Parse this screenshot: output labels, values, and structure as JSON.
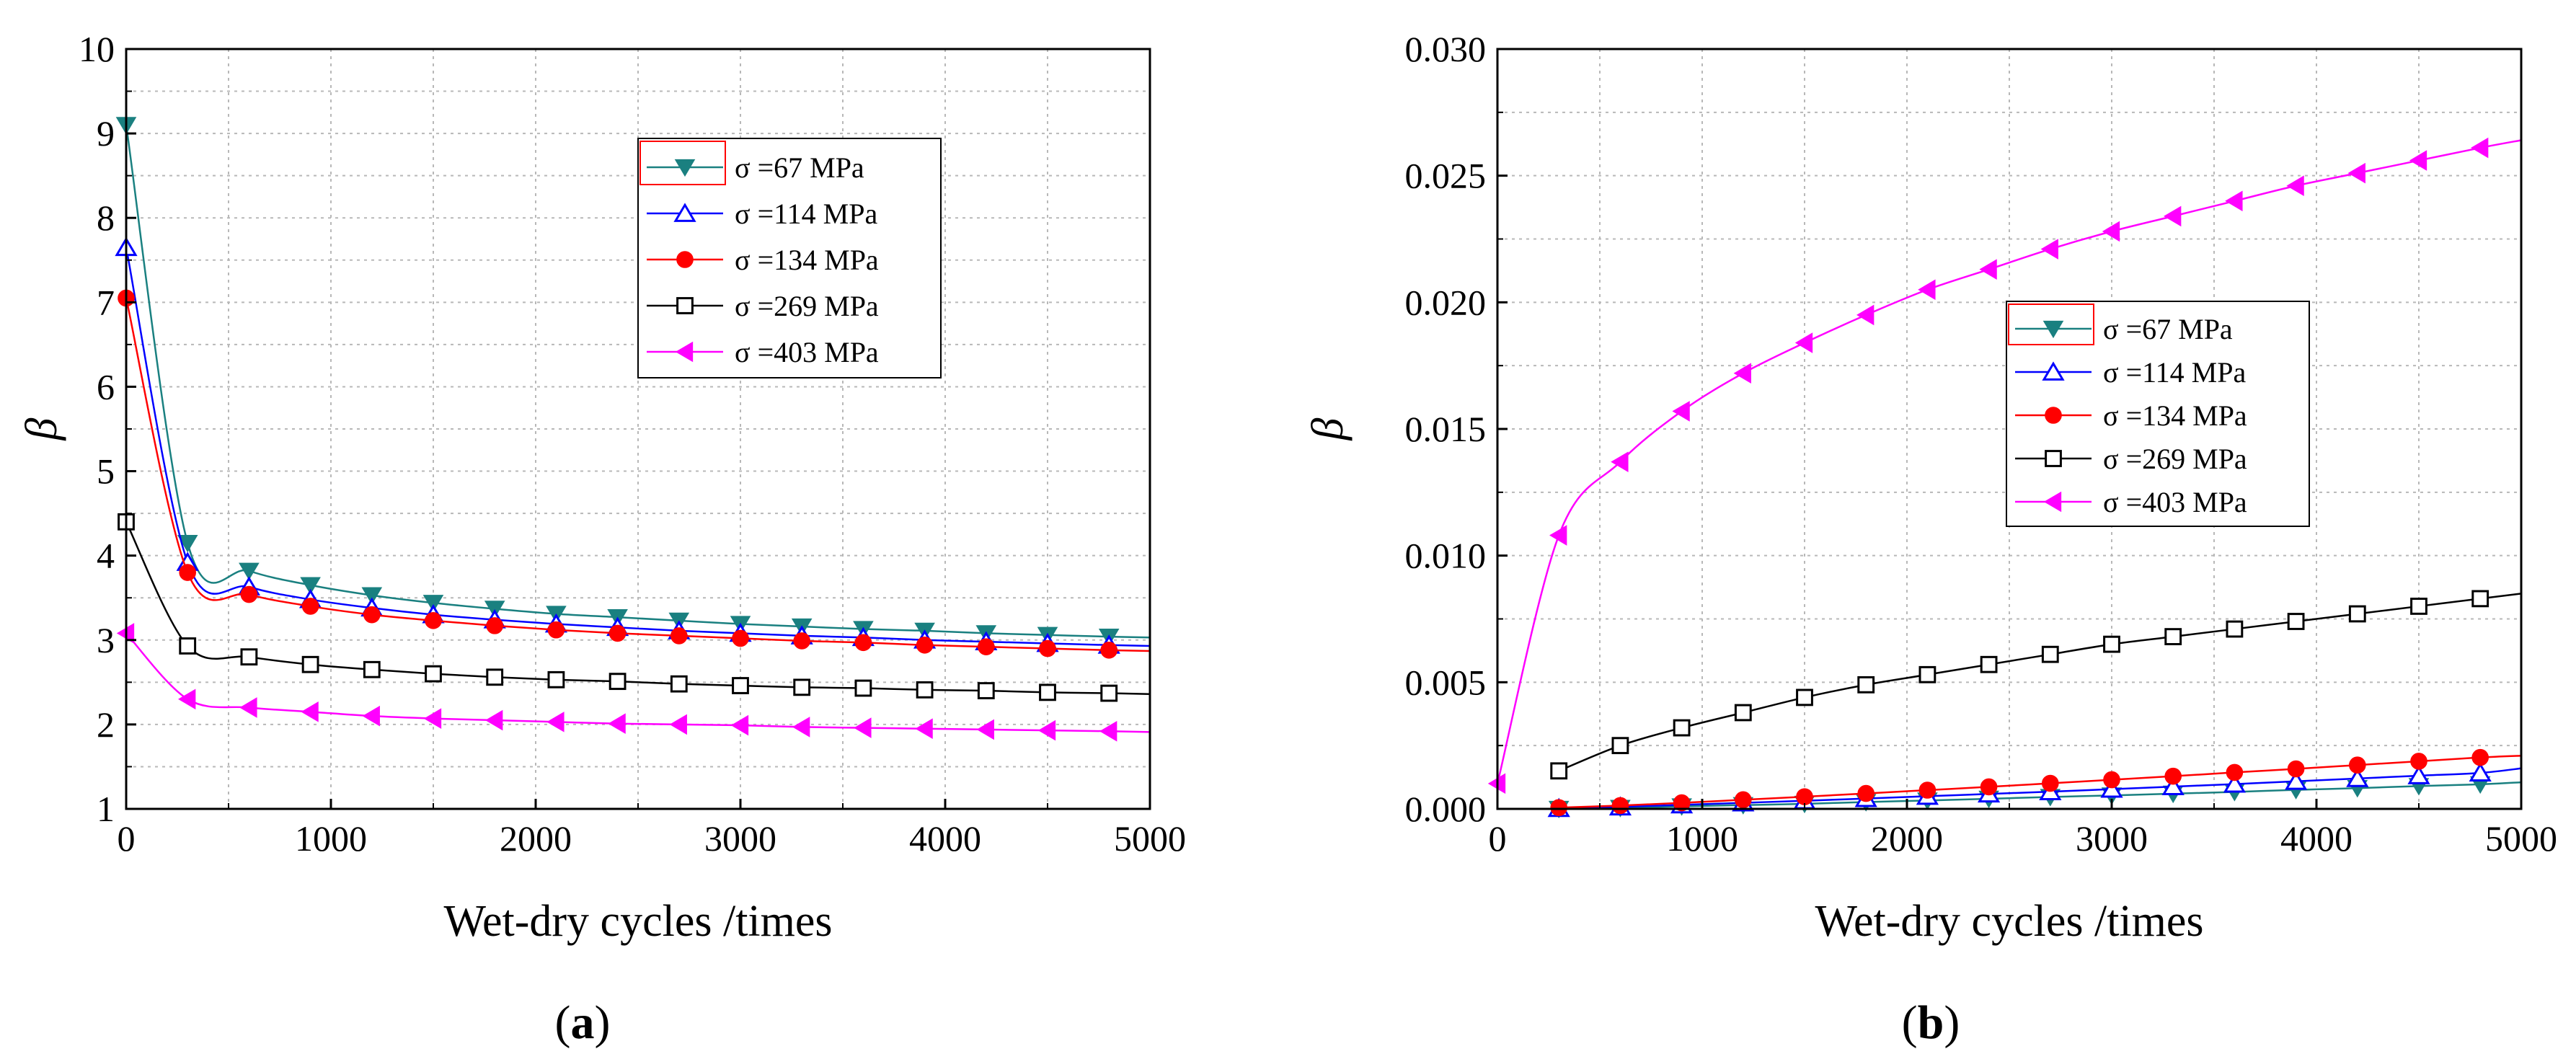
{
  "chart_data": [
    {
      "type": "line",
      "panel_label": "a",
      "xlabel": "Wet-dry cycles /times",
      "ylabel": "β",
      "xlim": [
        0,
        5000
      ],
      "ylim": [
        1,
        10
      ],
      "xticks": [
        0,
        1000,
        2000,
        3000,
        4000,
        5000
      ],
      "yticks": [
        1,
        2,
        3,
        4,
        5,
        6,
        7,
        8,
        9,
        10
      ],
      "legend_position": "top-right",
      "grid": true,
      "series": [
        {
          "name": "σ =67 MPa",
          "color": "#1a8080",
          "marker": "triangle-down-filled",
          "x": [
            0,
            300,
            600,
            900,
            1200,
            1500,
            1800,
            2100,
            2400,
            2700,
            3000,
            3300,
            3600,
            3900,
            4200,
            4500,
            4800
          ],
          "y": [
            9.1,
            4.15,
            3.82,
            3.65,
            3.53,
            3.44,
            3.37,
            3.31,
            3.27,
            3.23,
            3.19,
            3.16,
            3.13,
            3.11,
            3.08,
            3.06,
            3.04
          ],
          "curve_end": 3.03
        },
        {
          "name": "σ =114 MPa",
          "color": "#0000ff",
          "marker": "triangle-up-open",
          "x": [
            0,
            300,
            600,
            900,
            1200,
            1500,
            1800,
            2100,
            2400,
            2700,
            3000,
            3300,
            3600,
            3900,
            4200,
            4500,
            4800
          ],
          "y": [
            7.65,
            3.92,
            3.63,
            3.48,
            3.38,
            3.3,
            3.24,
            3.19,
            3.15,
            3.11,
            3.08,
            3.05,
            3.03,
            3.0,
            2.98,
            2.96,
            2.94
          ],
          "curve_end": 2.93
        },
        {
          "name": "σ =134 MPa",
          "color": "#ff0000",
          "marker": "circle-filled",
          "x": [
            0,
            300,
            600,
            900,
            1200,
            1500,
            1800,
            2100,
            2400,
            2700,
            3000,
            3300,
            3600,
            3900,
            4200,
            4500,
            4800
          ],
          "y": [
            7.05,
            3.8,
            3.54,
            3.4,
            3.3,
            3.23,
            3.17,
            3.12,
            3.08,
            3.05,
            3.02,
            2.99,
            2.97,
            2.94,
            2.92,
            2.9,
            2.88
          ],
          "curve_end": 2.87
        },
        {
          "name": "σ =269 MPa",
          "color": "#000000",
          "marker": "square-open",
          "x": [
            0,
            300,
            600,
            900,
            1200,
            1500,
            1800,
            2100,
            2400,
            2700,
            3000,
            3300,
            3600,
            3900,
            4200,
            4500,
            4800
          ],
          "y": [
            4.4,
            2.93,
            2.8,
            2.71,
            2.65,
            2.6,
            2.56,
            2.53,
            2.51,
            2.48,
            2.46,
            2.44,
            2.43,
            2.41,
            2.4,
            2.38,
            2.37
          ],
          "curve_end": 2.36
        },
        {
          "name": "σ =403 MPa",
          "color": "#ff00ff",
          "marker": "triangle-left-filled",
          "x": [
            0,
            300,
            600,
            900,
            1200,
            1500,
            1800,
            2100,
            2400,
            2700,
            3000,
            3300,
            3600,
            3900,
            4200,
            4500,
            4800
          ],
          "y": [
            3.08,
            2.3,
            2.2,
            2.15,
            2.1,
            2.07,
            2.05,
            2.03,
            2.01,
            2.0,
            1.99,
            1.97,
            1.96,
            1.95,
            1.94,
            1.93,
            1.92
          ],
          "curve_end": 1.91
        }
      ]
    },
    {
      "type": "line",
      "panel_label": "b",
      "xlabel": "Wet-dry cycles /times",
      "ylabel": "β",
      "xlim": [
        0,
        5000
      ],
      "ylim": [
        0,
        0.03
      ],
      "xticks": [
        0,
        1000,
        2000,
        3000,
        4000,
        5000
      ],
      "yticks": [
        0.0,
        0.005,
        0.01,
        0.015,
        0.02,
        0.025,
        0.03
      ],
      "ytick_labels": [
        "0.000",
        "0.005",
        "0.010",
        "0.015",
        "0.020",
        "0.025",
        "0.030"
      ],
      "legend_position": "center",
      "grid": true,
      "series": [
        {
          "name": "σ =67 MPa",
          "color": "#1a8080",
          "marker": "triangle-down-filled",
          "x": [
            300,
            600,
            900,
            1200,
            1500,
            1800,
            2100,
            2400,
            2700,
            3000,
            3300,
            3600,
            3900,
            4200,
            4500,
            4800
          ],
          "y": [
            0.0,
            4e-05,
            0.0001,
            0.00015,
            0.0002,
            0.00027,
            0.00033,
            0.0004,
            0.00047,
            0.00053,
            0.0006,
            0.00067,
            0.00075,
            0.00082,
            0.0009,
            0.00097
          ],
          "curve_end": 0.00105
        },
        {
          "name": "σ =114 MPa",
          "color": "#0000ff",
          "marker": "triangle-up-open",
          "x": [
            300,
            600,
            900,
            1200,
            1500,
            1800,
            2100,
            2400,
            2700,
            3000,
            3300,
            3600,
            3900,
            4200,
            4500,
            4800
          ],
          "y": [
            2e-05,
            8e-05,
            0.00016,
            0.00024,
            0.00032,
            0.00041,
            0.0005,
            0.00059,
            0.00068,
            0.00078,
            0.00088,
            0.00098,
            0.00109,
            0.0012,
            0.00131,
            0.00142
          ],
          "curve_end": 0.0016
        },
        {
          "name": "σ =134 MPa",
          "color": "#ff0000",
          "marker": "circle-filled",
          "x": [
            300,
            600,
            900,
            1200,
            1500,
            1800,
            2100,
            2400,
            2700,
            3000,
            3300,
            3600,
            3900,
            4200,
            4500,
            4800
          ],
          "y": [
            5e-05,
            0.00013,
            0.00024,
            0.00036,
            0.00048,
            0.00061,
            0.00074,
            0.00087,
            0.00101,
            0.00115,
            0.00129,
            0.00144,
            0.00158,
            0.00173,
            0.00188,
            0.00203
          ],
          "curve_end": 0.0021
        },
        {
          "name": "σ =269 MPa",
          "color": "#000000",
          "marker": "square-open",
          "x": [
            300,
            600,
            900,
            1200,
            1500,
            1800,
            2100,
            2400,
            2700,
            3000,
            3300,
            3600,
            3900,
            4200,
            4500,
            4800
          ],
          "y": [
            0.0015,
            0.0025,
            0.0032,
            0.0038,
            0.0044,
            0.0049,
            0.0053,
            0.0057,
            0.0061,
            0.0065,
            0.0068,
            0.0071,
            0.0074,
            0.0077,
            0.008,
            0.0083
          ],
          "curve_end": 0.0085
        },
        {
          "name": "σ =403 MPa",
          "color": "#ff00ff",
          "marker": "triangle-left-filled",
          "x": [
            0,
            300,
            600,
            900,
            1200,
            1500,
            1800,
            2100,
            2400,
            2700,
            3000,
            3300,
            3600,
            3900,
            4200,
            4500,
            4800
          ],
          "y": [
            0.001,
            0.0108,
            0.0137,
            0.0157,
            0.0172,
            0.0184,
            0.0195,
            0.0205,
            0.0213,
            0.0221,
            0.0228,
            0.0234,
            0.024,
            0.0246,
            0.0251,
            0.0256,
            0.0261
          ],
          "curve_end": 0.0264
        }
      ]
    }
  ]
}
